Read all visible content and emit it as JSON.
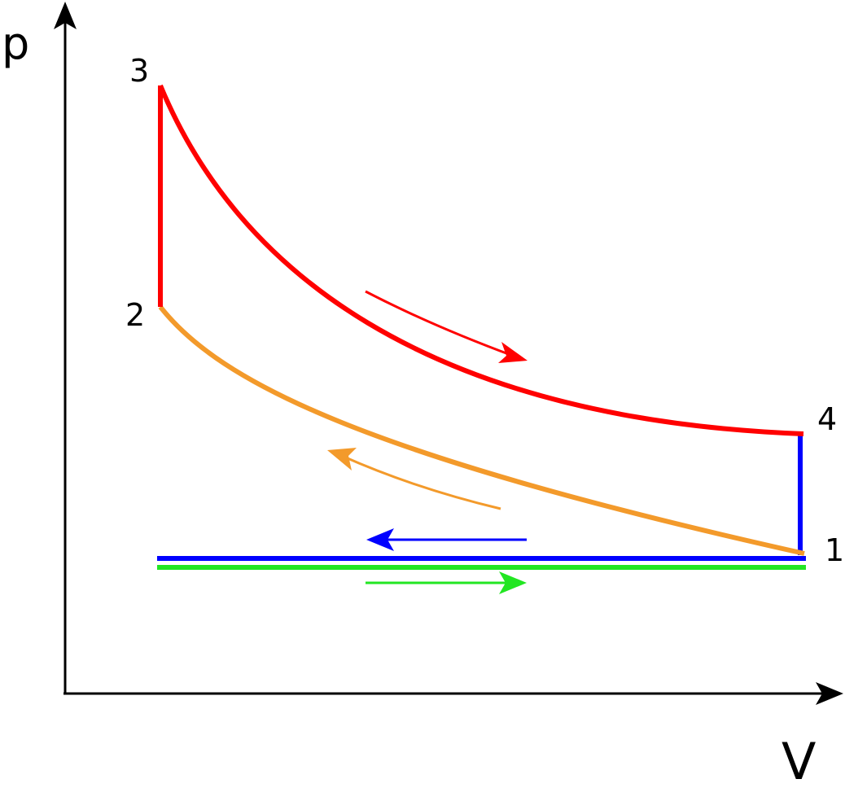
{
  "axes": {
    "y_label": "p",
    "x_label": "V"
  },
  "points": [
    {
      "label": "1"
    },
    {
      "label": "2"
    },
    {
      "label": "3"
    },
    {
      "label": "4"
    }
  ]
}
